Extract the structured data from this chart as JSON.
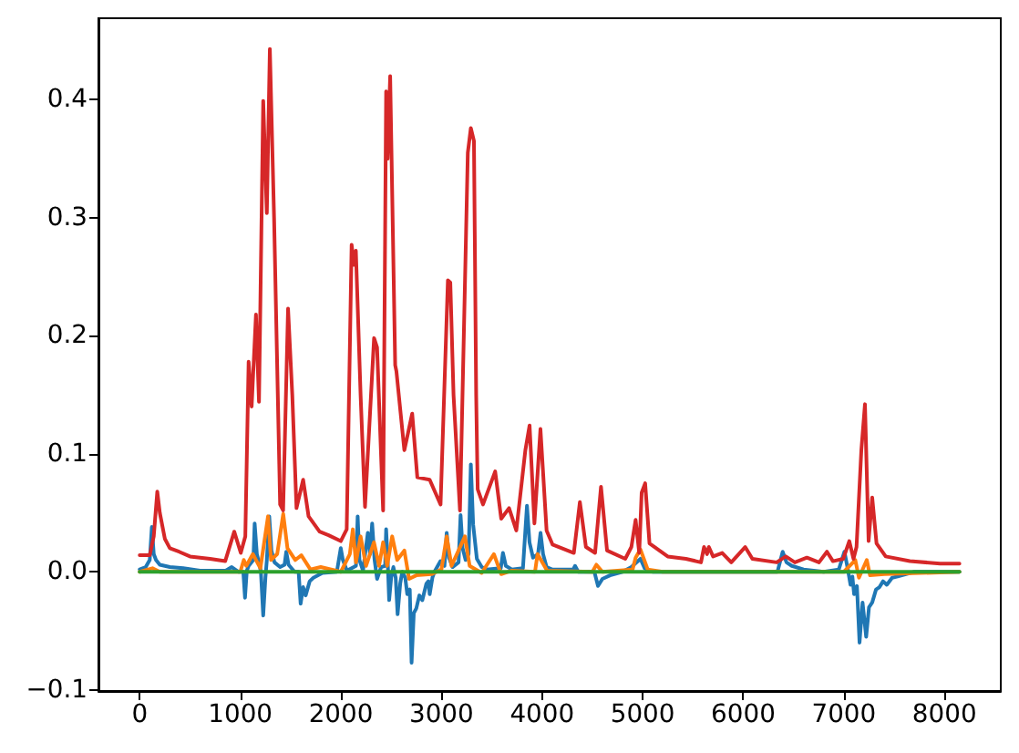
{
  "chart_data": {
    "type": "line",
    "xlim": [
      -410,
      8560
    ],
    "xticks": [
      0,
      1000,
      2000,
      3000,
      4000,
      5000,
      6000,
      7000,
      8000
    ],
    "ylim": [
      -0.101,
      0.469
    ],
    "yticks": [
      {
        "value": -0.1,
        "label": "−0.1"
      },
      {
        "value": 0,
        "label": "0.0"
      },
      0.1,
      0.2,
      0.3,
      0.4
    ],
    "series": [
      {
        "color": "#1f77b4",
        "x": [
          0,
          60,
          100,
          121,
          140,
          162,
          200,
          300,
          433,
          600,
          855,
          915,
          980,
          1030,
          1047,
          1065,
          1083,
          1130,
          1143,
          1165,
          1186,
          1205,
          1228,
          1250,
          1264,
          1288,
          1310,
          1340,
          1396,
          1440,
          1457,
          1480,
          1540,
          1580,
          1600,
          1625,
          1650,
          1690,
          1727,
          1817,
          1960,
          1999,
          2020,
          2060,
          2150,
          2167,
          2185,
          2220,
          2268,
          2290,
          2311,
          2335,
          2360,
          2400,
          2440,
          2450,
          2465,
          2480,
          2500,
          2522,
          2545,
          2564,
          2590,
          2610,
          2640,
          2660,
          2685,
          2703,
          2725,
          2750,
          2780,
          2810,
          2850,
          2870,
          2883,
          2910,
          2930,
          2990,
          3030,
          3052,
          3075,
          3110,
          3170,
          3190,
          3210,
          3240,
          3270,
          3292,
          3315,
          3352,
          3400,
          3450,
          3590,
          3611,
          3640,
          3700,
          3810,
          3850,
          3875,
          3910,
          3960,
          3985,
          4010,
          4045,
          4100,
          4310,
          4328,
          4360,
          4520,
          4556,
          4600,
          4676,
          4800,
          4888,
          4978,
          5020,
          5100,
          5580,
          6340,
          6392,
          6430,
          6483,
          6600,
          6800,
          6950,
          7006,
          7040,
          7066,
          7085,
          7102,
          7130,
          7156,
          7186,
          7222,
          7250,
          7282,
          7320,
          7354,
          7390,
          7427,
          7480,
          7535,
          7700,
          8149
        ],
        "values": [
          0.002,
          0.004,
          0.01,
          0.038,
          0.015,
          0.01,
          0.006,
          0.004,
          0.003,
          0.001,
          0.001,
          0.004,
          0,
          0,
          -0.022,
          0.001,
          0.005,
          0.01,
          0.041,
          0.015,
          0.008,
          0,
          -0.037,
          -0.005,
          0.01,
          0.047,
          0.018,
          0.008,
          0.004,
          0.006,
          0.017,
          0.006,
          0,
          0,
          -0.027,
          -0.013,
          -0.02,
          -0.008,
          -0.005,
          -0.001,
          0,
          0.02,
          0.01,
          0.001,
          0.005,
          0.047,
          0.01,
          0.001,
          0.033,
          0.015,
          0.041,
          0.01,
          -0.006,
          0.004,
          0.005,
          0.036,
          0.01,
          -0.024,
          -0.005,
          0.004,
          -0.005,
          -0.036,
          -0.01,
          0,
          -0.005,
          -0.019,
          -0.015,
          -0.077,
          -0.035,
          -0.031,
          -0.02,
          -0.024,
          -0.01,
          -0.008,
          -0.019,
          -0.005,
          0,
          0.009,
          0.005,
          0.033,
          0.012,
          0.004,
          0.008,
          0.048,
          0.02,
          0.01,
          0.015,
          0.091,
          0.04,
          0.011,
          0.004,
          0.002,
          0.003,
          0.016,
          0.005,
          0.002,
          0.003,
          0.056,
          0.025,
          0.012,
          0.015,
          0.033,
          0.015,
          0.004,
          0.002,
          0.002,
          0.005,
          0,
          0,
          -0.012,
          -0.006,
          -0.003,
          0,
          0.004,
          0.011,
          0.003,
          0,
          0,
          0,
          0.017,
          0.008,
          0.005,
          0.002,
          0,
          0.002,
          0.017,
          0.002,
          -0.011,
          -0.004,
          -0.019,
          -0.012,
          -0.06,
          -0.026,
          -0.055,
          -0.03,
          -0.026,
          -0.015,
          -0.013,
          -0.008,
          -0.011,
          -0.005,
          -0.004,
          0,
          0
        ]
      },
      {
        "color": "#ff7f0e",
        "x": [
          0,
          127,
          200,
          1000,
          1035,
          1060,
          1125,
          1200,
          1276,
          1306,
          1367,
          1427,
          1469,
          1547,
          1607,
          1697,
          1800,
          2000,
          2089,
          2119,
          2150,
          2196,
          2250,
          2329,
          2380,
          2420,
          2460,
          2510,
          2560,
          2631,
          2678,
          2750,
          2900,
          3000,
          3052,
          3100,
          3233,
          3280,
          3400,
          3521,
          3594,
          3700,
          3930,
          3955,
          4050,
          4500,
          4540,
          4600,
          4900,
          4930,
          4978,
          5050,
          5200,
          7000,
          7114,
          7150,
          7228,
          7260,
          7400,
          8149
        ],
        "values": [
          0,
          0.003,
          0,
          0,
          0.01,
          0.005,
          0.015,
          0.003,
          0.047,
          0.01,
          0.015,
          0.049,
          0.02,
          0.01,
          0.014,
          0.002,
          0.004,
          0,
          0.015,
          0.036,
          0.008,
          0.03,
          0.005,
          0.025,
          0.005,
          0.025,
          0.005,
          0.03,
          0.01,
          0.018,
          -0.006,
          -0.003,
          -0.002,
          0.002,
          0.03,
          0.005,
          0.03,
          0.005,
          -0.001,
          0.015,
          -0.002,
          0.001,
          0,
          0.015,
          0.001,
          0,
          0.006,
          0,
          0.002,
          0.012,
          0.019,
          0.002,
          0,
          0,
          0.01,
          -0.005,
          0.01,
          -0.003,
          -0.002,
          0
        ]
      },
      {
        "color": "#2ca02c",
        "x": [
          0,
          2000,
          4000,
          6000,
          8149
        ],
        "values": [
          0,
          0,
          0,
          0,
          0
        ]
      },
      {
        "color": "#d62728",
        "x": [
          0,
          100,
          140,
          175,
          200,
          250,
          300,
          392,
          500,
          700,
          850,
          940,
          1005,
          1050,
          1083,
          1113,
          1156,
          1186,
          1228,
          1264,
          1294,
          1336,
          1396,
          1426,
          1475,
          1517,
          1559,
          1625,
          1679,
          1788,
          1878,
          1999,
          2058,
          2107,
          2130,
          2149,
          2196,
          2240,
          2330,
          2360,
          2420,
          2450,
          2465,
          2490,
          2540,
          2552,
          2631,
          2709,
          2760,
          2883,
          2991,
          3064,
          3088,
          3120,
          3184,
          3262,
          3292,
          3323,
          3345,
          3360,
          3413,
          3534,
          3594,
          3672,
          3744,
          3834,
          3876,
          3924,
          3984,
          4045,
          4105,
          4316,
          4376,
          4436,
          4527,
          4586,
          4646,
          4827,
          4888,
          4930,
          4966,
          4990,
          5025,
          5068,
          5249,
          5430,
          5580,
          5610,
          5640,
          5658,
          5700,
          5791,
          5881,
          6019,
          6091,
          6332,
          6423,
          6513,
          6633,
          6753,
          6832,
          6892,
          6994,
          7054,
          7096,
          7126,
          7174,
          7210,
          7246,
          7282,
          7325,
          7416,
          7656,
          7957,
          8149
        ],
        "values": [
          0.014,
          0.014,
          0.03,
          0.068,
          0.05,
          0.028,
          0.02,
          0.017,
          0.013,
          0.011,
          0.009,
          0.034,
          0.016,
          0.03,
          0.178,
          0.14,
          0.218,
          0.144,
          0.399,
          0.304,
          0.443,
          0.3,
          0.057,
          0.052,
          0.223,
          0.15,
          0.054,
          0.078,
          0.047,
          0.034,
          0.031,
          0.026,
          0.036,
          0.277,
          0.26,
          0.272,
          0.15,
          0.055,
          0.198,
          0.19,
          0.052,
          0.407,
          0.35,
          0.42,
          0.175,
          0.17,
          0.103,
          0.134,
          0.08,
          0.078,
          0.057,
          0.247,
          0.245,
          0.15,
          0.052,
          0.355,
          0.376,
          0.365,
          0.15,
          0.07,
          0.057,
          0.085,
          0.045,
          0.054,
          0.035,
          0.103,
          0.124,
          0.041,
          0.121,
          0.035,
          0.023,
          0.016,
          0.059,
          0.021,
          0.016,
          0.072,
          0.018,
          0.011,
          0.021,
          0.044,
          0.016,
          0.067,
          0.075,
          0.024,
          0.013,
          0.011,
          0.008,
          0.021,
          0.015,
          0.021,
          0.013,
          0.016,
          0.008,
          0.021,
          0.011,
          0.008,
          0.013,
          0.008,
          0.012,
          0.008,
          0.017,
          0.009,
          0.011,
          0.026,
          0.011,
          0.021,
          0.103,
          0.142,
          0.026,
          0.063,
          0.024,
          0.013,
          0.009,
          0.007,
          0.007
        ]
      }
    ]
  }
}
